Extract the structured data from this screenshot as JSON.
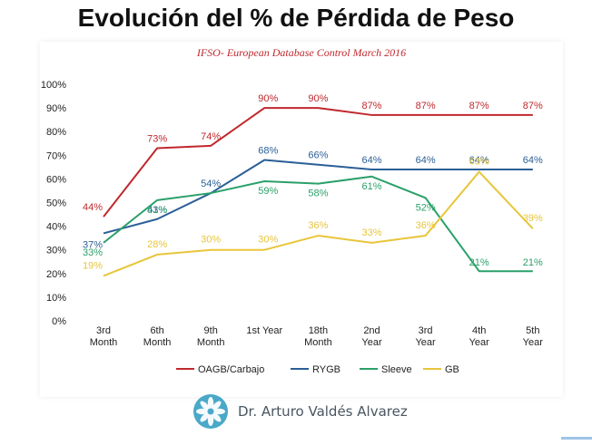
{
  "title": "Evolución del % de Pérdida de Peso",
  "footer": {
    "name": "Dr. Arturo Valdés Alvarez",
    "logo_icon": "flower-logo-icon",
    "logo_color": "#4aa8c8"
  },
  "chart_data": {
    "type": "line",
    "subtitle": "IFSO- European Database Control March 2016",
    "categories": [
      "3rd\nMonth",
      "6th\nMonth",
      "9th\nMonth",
      "1st    Year",
      "18th\nMonth",
      "2nd\nYear",
      "3rd\nYear",
      "4th\nYear",
      "5th\nYear"
    ],
    "ylim": [
      0,
      100
    ],
    "yticks": [
      "0%",
      "10%",
      "20%",
      "30%",
      "40%",
      "50%",
      "60%",
      "70%",
      "80%",
      "90%",
      "100%"
    ],
    "grid": false,
    "legend_position": "bottom",
    "series": [
      {
        "name": "OAGB/Carbajo",
        "color": "#c0282d",
        "values": [
          44,
          73,
          74,
          90,
          90,
          87,
          87,
          87,
          87
        ],
        "labels": [
          "44%",
          "73%",
          "74%",
          "90%",
          "90%",
          "87%",
          "87%",
          "87%",
          "87%"
        ]
      },
      {
        "name": "RYGB",
        "color": "#2a5f96",
        "values": [
          37,
          43,
          54,
          68,
          66,
          64,
          64,
          64,
          64
        ],
        "labels": [
          "37%",
          "43%",
          "54%",
          "68%",
          "66%",
          "64%",
          "64%",
          "64%",
          "64%"
        ]
      },
      {
        "name": "Sleeve",
        "color": "#2aa06a",
        "values": [
          33,
          51,
          54,
          59,
          58,
          61,
          52,
          21,
          21
        ],
        "labels": [
          "33%",
          "51%",
          "",
          "59%",
          "58%",
          "61%",
          "52%",
          "21%",
          "21%"
        ]
      },
      {
        "name": "GB",
        "color": "#e8c53a",
        "values": [
          19,
          28,
          30,
          30,
          36,
          33,
          36,
          63,
          39
        ],
        "labels": [
          "19%",
          "28%",
          "30%",
          "30%",
          "36%",
          "33%",
          "36%",
          "63%",
          "39%"
        ]
      }
    ]
  }
}
